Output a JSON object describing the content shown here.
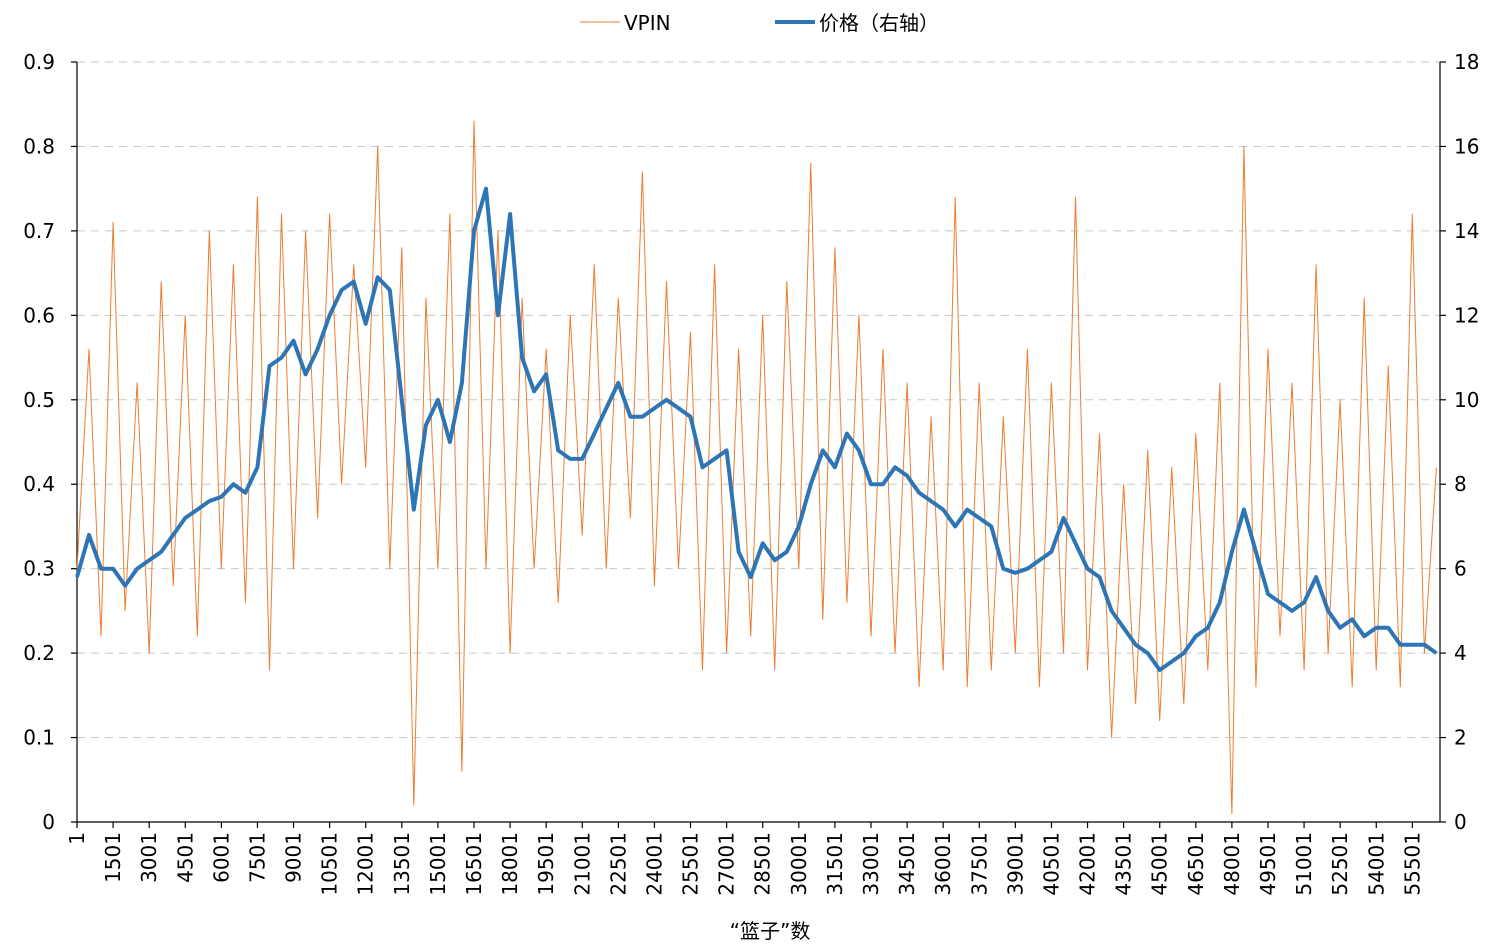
{
  "chart_data": {
    "type": "line",
    "x_label": "“篮子”数",
    "x": [
      1,
      500,
      1000,
      1500,
      2000,
      2500,
      3000,
      3500,
      4000,
      4500,
      5000,
      5500,
      6000,
      6500,
      7000,
      7500,
      8000,
      8500,
      9000,
      9500,
      10000,
      10500,
      11000,
      11500,
      12000,
      12500,
      13000,
      13500,
      14000,
      14500,
      15000,
      15500,
      16000,
      16500,
      17000,
      17500,
      18000,
      18500,
      19000,
      19500,
      20000,
      20500,
      21000,
      21500,
      22000,
      22500,
      23000,
      23500,
      24000,
      24500,
      25000,
      25500,
      26000,
      26500,
      27000,
      27500,
      28000,
      28500,
      29000,
      29500,
      30000,
      30500,
      31000,
      31500,
      32000,
      32500,
      33000,
      33500,
      34000,
      34500,
      35000,
      35500,
      36000,
      36500,
      37000,
      37500,
      38000,
      38500,
      39000,
      39500,
      40000,
      40500,
      41000,
      41500,
      42000,
      42500,
      43000,
      43500,
      44000,
      44500,
      45000,
      45500,
      46000,
      46500,
      47000,
      47500,
      48000,
      48500,
      49000,
      49500,
      50000,
      50500,
      51000,
      51500,
      52000,
      52500,
      53000,
      53500,
      54000,
      54500,
      55000,
      55500,
      56000,
      56500
    ],
    "series": [
      {
        "name": "VPIN",
        "color": "#ed7d31",
        "width": 1,
        "axis": "y",
        "values": [
          0.3,
          0.56,
          0.22,
          0.71,
          0.25,
          0.52,
          0.2,
          0.64,
          0.28,
          0.6,
          0.22,
          0.7,
          0.3,
          0.66,
          0.26,
          0.74,
          0.18,
          0.72,
          0.3,
          0.7,
          0.36,
          0.72,
          0.4,
          0.66,
          0.42,
          0.8,
          0.3,
          0.68,
          0.02,
          0.62,
          0.3,
          0.72,
          0.06,
          0.83,
          0.3,
          0.7,
          0.2,
          0.62,
          0.3,
          0.56,
          0.26,
          0.6,
          0.34,
          0.66,
          0.3,
          0.62,
          0.36,
          0.77,
          0.28,
          0.64,
          0.3,
          0.58,
          0.18,
          0.66,
          0.2,
          0.56,
          0.22,
          0.6,
          0.18,
          0.64,
          0.3,
          0.78,
          0.24,
          0.68,
          0.26,
          0.6,
          0.22,
          0.56,
          0.2,
          0.52,
          0.16,
          0.48,
          0.18,
          0.74,
          0.16,
          0.52,
          0.18,
          0.48,
          0.2,
          0.56,
          0.16,
          0.52,
          0.2,
          0.74,
          0.18,
          0.46,
          0.1,
          0.4,
          0.14,
          0.44,
          0.12,
          0.42,
          0.14,
          0.46,
          0.18,
          0.52,
          0.01,
          0.8,
          0.16,
          0.56,
          0.22,
          0.52,
          0.18,
          0.66,
          0.2,
          0.5,
          0.16,
          0.62,
          0.18,
          0.54,
          0.16,
          0.72,
          0.2,
          0.42
        ]
      },
      {
        "name": "价格（右轴）",
        "color": "#2e75b6",
        "width": 4,
        "axis": "y2",
        "values": [
          5.8,
          6.8,
          6.0,
          6.0,
          5.6,
          6.0,
          6.2,
          6.4,
          6.8,
          7.2,
          7.4,
          7.6,
          7.7,
          8.0,
          7.8,
          8.4,
          10.8,
          11.0,
          11.4,
          10.6,
          11.2,
          12.0,
          12.6,
          12.8,
          11.8,
          12.9,
          12.6,
          10.0,
          7.4,
          9.4,
          10.0,
          9.0,
          10.4,
          14.0,
          15.0,
          12.0,
          14.4,
          11.0,
          10.2,
          10.6,
          8.8,
          8.6,
          8.6,
          9.2,
          9.8,
          10.4,
          9.6,
          9.6,
          9.8,
          10.0,
          9.8,
          9.6,
          8.4,
          8.6,
          8.8,
          6.4,
          5.8,
          6.6,
          6.2,
          6.4,
          7.0,
          8.0,
          8.8,
          8.4,
          9.2,
          8.8,
          8.0,
          8.0,
          8.4,
          8.2,
          7.8,
          7.6,
          7.4,
          7.0,
          7.4,
          7.2,
          7.0,
          6.0,
          5.9,
          6.0,
          6.2,
          6.4,
          7.2,
          6.6,
          6.0,
          5.8,
          5.0,
          4.6,
          4.2,
          4.0,
          3.6,
          3.8,
          4.0,
          4.4,
          4.6,
          5.2,
          6.4,
          7.4,
          6.4,
          5.4,
          5.2,
          5.0,
          5.2,
          5.8,
          5.0,
          4.6,
          4.8,
          4.4,
          4.6,
          4.6,
          4.2,
          4.2,
          4.2,
          4.0
        ]
      }
    ],
    "xlim": [
      1,
      56650
    ],
    "xticks": [
      1,
      1501,
      3001,
      4501,
      6001,
      7501,
      9001,
      10501,
      12001,
      13501,
      15001,
      16501,
      18001,
      19501,
      21001,
      22501,
      24001,
      25501,
      27001,
      28501,
      30001,
      31501,
      33001,
      34501,
      36001,
      37501,
      39001,
      40501,
      42001,
      43501,
      45001,
      46501,
      48001,
      49501,
      51001,
      52501,
      54001,
      55501
    ],
    "ylim": [
      0,
      0.9
    ],
    "yticks": [
      0,
      0.1,
      0.2,
      0.3,
      0.4,
      0.5,
      0.6,
      0.7,
      0.8,
      0.9
    ],
    "y2lim": [
      0,
      18
    ],
    "y2ticks": [
      0,
      2,
      4,
      6,
      8,
      10,
      12,
      14,
      16,
      18
    ],
    "grid": true,
    "legend": "top"
  }
}
